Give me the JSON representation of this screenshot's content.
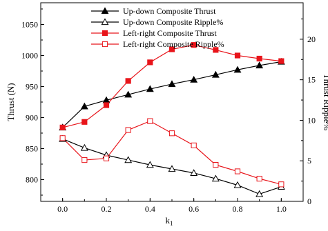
{
  "chart_data": {
    "type": "line",
    "x": [
      0.0,
      0.1,
      0.2,
      0.3,
      0.4,
      0.5,
      0.6,
      0.7,
      0.8,
      0.9,
      1.0
    ],
    "xlabel": "k",
    "xlabel_sub": "1",
    "ylabel": "Thrust  (N)",
    "y2label": "Thrust Ripple%",
    "xlim": [
      -0.1,
      1.1
    ],
    "ylim": [
      765,
      1085
    ],
    "y2lim": [
      0,
      24.5
    ],
    "xticks": [
      "0.0",
      "0.2",
      "0.4",
      "0.6",
      "0.8",
      "1.0"
    ],
    "yticks": [
      "800",
      "850",
      "900",
      "950",
      "1000",
      "1050"
    ],
    "y2ticks": [
      "0",
      "5",
      "10",
      "15",
      "20"
    ],
    "grid": false,
    "legend_position": "top-center",
    "series": [
      {
        "name": "Up-down Composite Thrust",
        "axis": "left",
        "color": "#000000",
        "marker": "triangle",
        "filled": true,
        "values": [
          884,
          918,
          928,
          937,
          946,
          954,
          961,
          969,
          977,
          984,
          990
        ]
      },
      {
        "name": "Up-down Composite Ripple%",
        "axis": "right",
        "color": "#000000",
        "marker": "triangle",
        "filled": false,
        "values": [
          7.7,
          6.6,
          5.7,
          5.1,
          4.5,
          4.0,
          3.5,
          2.8,
          2.0,
          0.9,
          1.8
        ]
      },
      {
        "name": "Left-right Composite Thrust",
        "axis": "left",
        "color": "#e8141a",
        "marker": "square",
        "filled": true,
        "values": [
          884,
          893,
          920,
          959,
          989,
          1010,
          1017,
          1009,
          1000,
          995,
          991
        ]
      },
      {
        "name": "Left-right Composite Ripple%",
        "axis": "right",
        "color": "#e8141a",
        "marker": "square",
        "filled": false,
        "values": [
          7.8,
          5.1,
          5.3,
          8.8,
          9.9,
          8.4,
          6.9,
          4.5,
          3.7,
          2.8,
          2.1
        ]
      }
    ]
  }
}
